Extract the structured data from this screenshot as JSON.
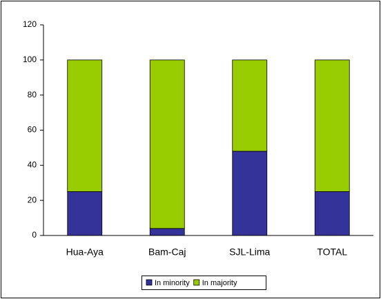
{
  "chart_data": {
    "type": "stacked_bar",
    "categories": [
      "Hua-Aya",
      "Bam-Caj",
      "SJL-Lima",
      "TOTAL"
    ],
    "series": [
      {
        "name": "In minority",
        "color": "#333399",
        "values": [
          25,
          4,
          48,
          25
        ]
      },
      {
        "name": "In majority",
        "color": "#99cc00",
        "values": [
          75,
          96,
          52,
          75
        ]
      }
    ],
    "ylim": [
      0,
      120
    ],
    "yticks": [
      0,
      20,
      40,
      60,
      80,
      100,
      120
    ],
    "grid": false,
    "legend": "bottom"
  }
}
